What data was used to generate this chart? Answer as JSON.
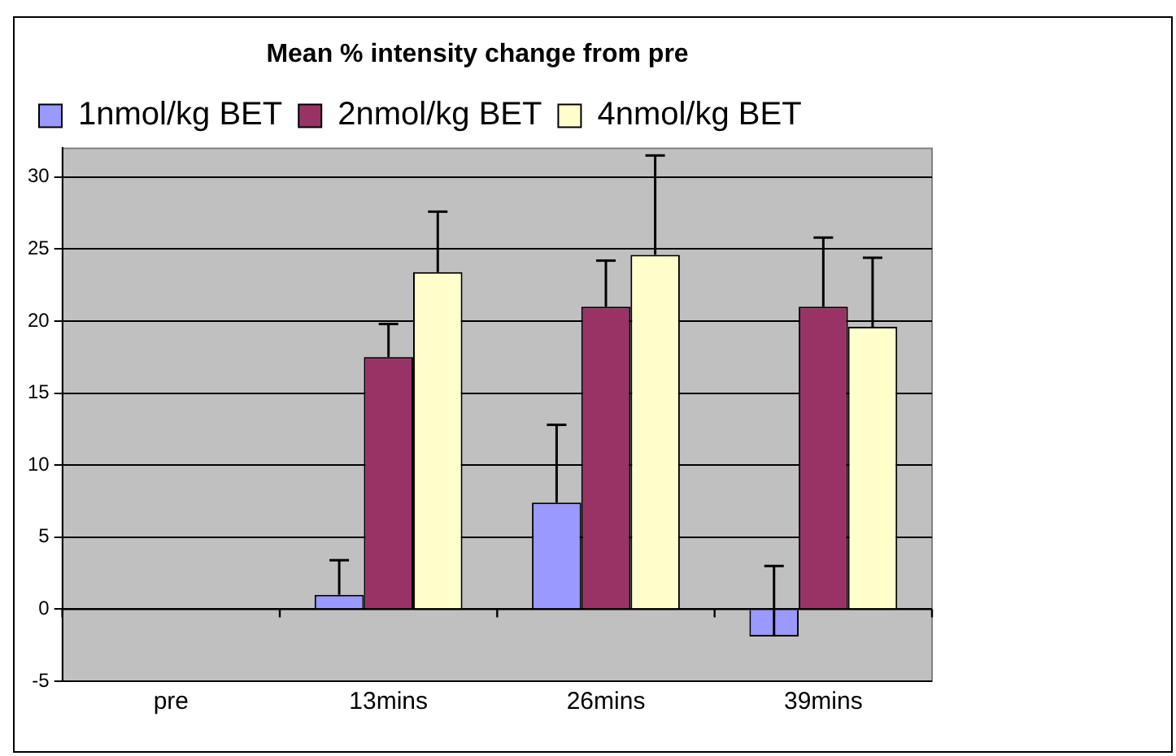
{
  "chart_data": {
    "type": "bar",
    "title": "Mean % intensity change from pre",
    "categories": [
      "pre",
      "13mins",
      "26mins",
      "39mins"
    ],
    "series": [
      {
        "name": "1nmol/kg BET",
        "color": "#9999ff",
        "values": [
          null,
          1.0,
          7.4,
          -1.9
        ],
        "errors": [
          null,
          [
            1.0,
            3.4
          ],
          [
            7.4,
            12.8
          ],
          [
            -1.9,
            3.0
          ]
        ]
      },
      {
        "name": "2nmol/kg BET",
        "color": "#993366",
        "values": [
          null,
          17.5,
          21.0,
          21.0
        ],
        "errors": [
          null,
          [
            17.5,
            19.8
          ],
          [
            21.0,
            24.2
          ],
          [
            21.0,
            25.8
          ]
        ]
      },
      {
        "name": "4nmol/kg BET",
        "color": "#ffffcc",
        "values": [
          null,
          23.4,
          24.6,
          19.6
        ],
        "errors": [
          null,
          [
            23.4,
            27.6
          ],
          [
            24.6,
            31.5
          ],
          [
            19.6,
            24.4
          ]
        ]
      }
    ],
    "ylim": [
      -5,
      32
    ],
    "yticks": [
      -5,
      0,
      5,
      10,
      15,
      20,
      25,
      30
    ],
    "grid": "y",
    "legend": "top"
  }
}
